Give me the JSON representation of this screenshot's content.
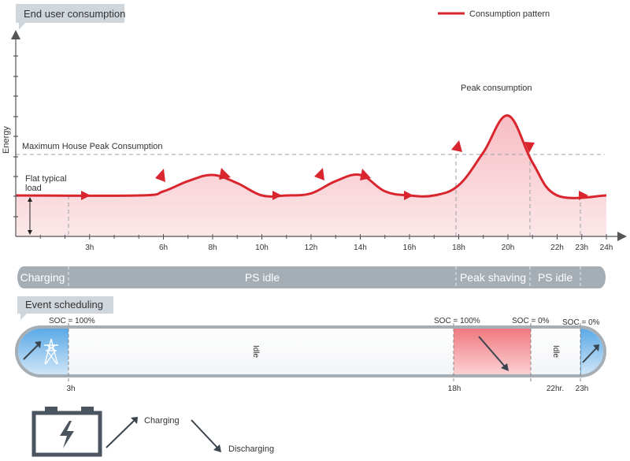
{
  "chart": {
    "title": "End user consumption",
    "legend_label": "Consumption pattern",
    "ylabel": "Energy",
    "x_ticks": [
      "3h",
      "6h",
      "8h",
      "10h",
      "12h",
      "14h",
      "16h",
      "18h",
      "20h",
      "22h",
      "23h",
      "24h"
    ],
    "annotations": {
      "max_peak": "Maximum House Peak Consumption",
      "flat_load_line1": "Flat typical",
      "flat_load_line2": "load",
      "peak": "Peak consumption"
    },
    "colors": {
      "line": "#d9262e",
      "fill": "#f8d7da",
      "axis": "#555555",
      "dashed": "#9aa0a6"
    }
  },
  "chart_data": {
    "type": "area",
    "x_unit": "hour",
    "xlim": [
      0,
      24
    ],
    "ylabel": "Energy",
    "x_ticks": [
      3,
      6,
      8,
      10,
      12,
      14,
      16,
      18,
      20,
      22,
      23,
      24
    ],
    "series": [
      {
        "name": "Consumption pattern",
        "x": [
          0,
          5,
          6,
          7,
          8,
          9,
          10,
          11,
          12,
          13,
          14,
          15,
          16,
          17,
          18,
          19,
          20,
          21,
          22,
          24
        ],
        "y": [
          1,
          1,
          1.2,
          1.7,
          2.0,
          1.6,
          1.0,
          1.0,
          1.1,
          1.7,
          2.0,
          1.2,
          1.0,
          1.0,
          1.5,
          3.1,
          4.9,
          2.6,
          1.0,
          1.0
        ]
      }
    ],
    "reference_lines": [
      {
        "label": "Maximum House Peak Consumption",
        "y": 2.05
      }
    ]
  },
  "phases": {
    "items": [
      "Charging",
      "PS idle",
      "Peak shaving",
      "PS idle"
    ]
  },
  "schedule": {
    "title": "Event scheduling",
    "soc_labels": [
      "SOC = 100%",
      "SOC = 100%",
      "SOC = 0%",
      "SOC = 0%"
    ],
    "idle_labels": [
      "Idle",
      "Idle"
    ],
    "time_labels": [
      "3h",
      "18h",
      "22hr.",
      "23h"
    ]
  },
  "legend": {
    "charging": "Charging",
    "discharging": "Discharging"
  }
}
